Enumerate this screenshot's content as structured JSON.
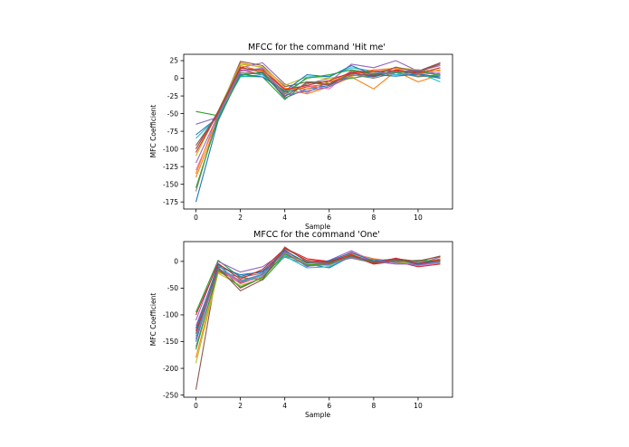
{
  "chart_data": [
    {
      "type": "line",
      "title": "MFCC for the command 'Hit me'",
      "xlabel": "Sample",
      "ylabel": "MFC Coefficient",
      "xlim": [
        -0.55,
        11.55
      ],
      "ylim": [
        -185,
        34
      ],
      "xticks": [
        0,
        2,
        4,
        6,
        8,
        10
      ],
      "yticks": [
        25,
        0,
        -25,
        -50,
        -75,
        -100,
        -125,
        -150,
        -175
      ],
      "grid": false,
      "legend": "none",
      "x": [
        0,
        1,
        2,
        3,
        4,
        5,
        6,
        7,
        8,
        9,
        10,
        11
      ],
      "series": [
        {
          "color": "#1f77b4",
          "values": [
            -80,
            -55,
            5,
            8,
            -28,
            -15,
            -10,
            5,
            2,
            10,
            5,
            0
          ]
        },
        {
          "color": "#ff7f0e",
          "values": [
            -140,
            -60,
            22,
            15,
            -15,
            -22,
            -12,
            2,
            -15,
            10,
            -5,
            5
          ]
        },
        {
          "color": "#2ca02c",
          "values": [
            -47,
            -53,
            3,
            2,
            -30,
            -5,
            -5,
            0,
            5,
            8,
            3,
            2
          ]
        },
        {
          "color": "#d62728",
          "values": [
            -100,
            -48,
            12,
            5,
            -20,
            -12,
            -8,
            8,
            3,
            12,
            8,
            22
          ]
        },
        {
          "color": "#9467bd",
          "values": [
            -65,
            -55,
            15,
            22,
            -8,
            -20,
            -5,
            20,
            15,
            25,
            10,
            18
          ]
        },
        {
          "color": "#8c564b",
          "values": [
            -95,
            -50,
            24,
            18,
            -12,
            -5,
            -8,
            10,
            5,
            15,
            10,
            22
          ]
        },
        {
          "color": "#e377c2",
          "values": [
            -130,
            -58,
            10,
            12,
            -18,
            -10,
            -15,
            12,
            8,
            5,
            5,
            8
          ]
        },
        {
          "color": "#7f7f7f",
          "values": [
            -160,
            -52,
            8,
            6,
            -22,
            -8,
            0,
            5,
            0,
            8,
            2,
            5
          ]
        },
        {
          "color": "#bcbd22",
          "values": [
            -110,
            -46,
            20,
            16,
            -10,
            2,
            0,
            3,
            8,
            15,
            12,
            10
          ]
        },
        {
          "color": "#17becf",
          "values": [
            -85,
            -54,
            2,
            5,
            -25,
            2,
            3,
            15,
            10,
            5,
            8,
            -5
          ]
        },
        {
          "color": "#1f77b4",
          "values": [
            -175,
            -60,
            6,
            2,
            -18,
            5,
            2,
            18,
            5,
            3,
            6,
            2
          ]
        },
        {
          "color": "#ff7f0e",
          "values": [
            -135,
            -50,
            18,
            10,
            -14,
            -15,
            -5,
            6,
            12,
            14,
            6,
            12
          ]
        },
        {
          "color": "#2ca02c",
          "values": [
            -155,
            -57,
            4,
            9,
            -20,
            0,
            5,
            12,
            6,
            8,
            10,
            4
          ]
        },
        {
          "color": "#d62728",
          "values": [
            -105,
            -49,
            14,
            12,
            -16,
            -10,
            -3,
            8,
            10,
            11,
            7,
            15
          ]
        },
        {
          "color": "#9467bd",
          "values": [
            -120,
            -52,
            11,
            14,
            -24,
            -18,
            -12,
            4,
            7,
            9,
            12,
            6
          ]
        },
        {
          "color": "#8c564b",
          "values": [
            -100,
            -47,
            16,
            8,
            -26,
            -6,
            -9,
            7,
            4,
            16,
            9,
            20
          ]
        }
      ]
    },
    {
      "type": "line",
      "title": "MFCC for the command 'One'",
      "xlabel": "Sample",
      "ylabel": "MFC Coefficient",
      "xlim": [
        -0.55,
        11.55
      ],
      "ylim": [
        -254,
        37
      ],
      "xticks": [
        0,
        2,
        4,
        6,
        8,
        10
      ],
      "yticks": [
        0,
        -50,
        -100,
        -150,
        -200,
        -250
      ],
      "grid": false,
      "legend": "none",
      "x": [
        0,
        1,
        2,
        3,
        4,
        5,
        6,
        7,
        8,
        9,
        10,
        11
      ],
      "series": [
        {
          "color": "#1f77b4",
          "values": [
            -150,
            -10,
            -25,
            -20,
            15,
            -5,
            -12,
            10,
            0,
            5,
            -5,
            0
          ]
        },
        {
          "color": "#ff7f0e",
          "values": [
            -180,
            -20,
            -35,
            -30,
            20,
            -5,
            0,
            15,
            5,
            0,
            -5,
            5
          ]
        },
        {
          "color": "#2ca02c",
          "values": [
            -95,
            2,
            -30,
            -35,
            10,
            0,
            -5,
            8,
            0,
            5,
            0,
            10
          ]
        },
        {
          "color": "#d62728",
          "values": [
            -130,
            -15,
            -40,
            -25,
            25,
            5,
            0,
            10,
            -5,
            0,
            -10,
            -5
          ]
        },
        {
          "color": "#9467bd",
          "values": [
            -110,
            0,
            -20,
            -10,
            18,
            -10,
            2,
            20,
            0,
            -5,
            -5,
            8
          ]
        },
        {
          "color": "#8c564b",
          "values": [
            -240,
            -5,
            -50,
            -30,
            22,
            -8,
            -5,
            12,
            0,
            5,
            0,
            10
          ]
        },
        {
          "color": "#e377c2",
          "values": [
            -120,
            -12,
            -42,
            -28,
            12,
            -2,
            -3,
            18,
            2,
            3,
            -8,
            -3
          ]
        },
        {
          "color": "#7f7f7f",
          "values": [
            -160,
            -18,
            -30,
            -22,
            8,
            -6,
            -2,
            6,
            -3,
            2,
            0,
            0
          ]
        },
        {
          "color": "#bcbd22",
          "values": [
            -190,
            -22,
            -45,
            -32,
            15,
            -4,
            -8,
            14,
            3,
            -2,
            -3,
            -2
          ]
        },
        {
          "color": "#17becf",
          "values": [
            -140,
            -8,
            -38,
            -26,
            10,
            -12,
            -10,
            9,
            -2,
            1,
            -2,
            -4
          ]
        },
        {
          "color": "#1f77b4",
          "values": [
            -125,
            -6,
            -28,
            -18,
            20,
            -3,
            1,
            16,
            1,
            4,
            -6,
            2
          ]
        },
        {
          "color": "#2ca02c",
          "values": [
            -165,
            -16,
            -48,
            -30,
            14,
            -7,
            -4,
            11,
            -1,
            0,
            2,
            1
          ]
        },
        {
          "color": "#d62728",
          "values": [
            -100,
            -4,
            -33,
            -15,
            24,
            2,
            -1,
            13,
            -4,
            6,
            -4,
            3
          ]
        },
        {
          "color": "#9467bd",
          "values": [
            -145,
            -14,
            -36,
            -24,
            17,
            -9,
            -6,
            7,
            4,
            -3,
            -7,
            -1
          ]
        },
        {
          "color": "#8c564b",
          "values": [
            -135,
            -11,
            -55,
            -34,
            27,
            -1,
            -2,
            10,
            -2,
            2,
            1,
            9
          ]
        }
      ]
    }
  ]
}
